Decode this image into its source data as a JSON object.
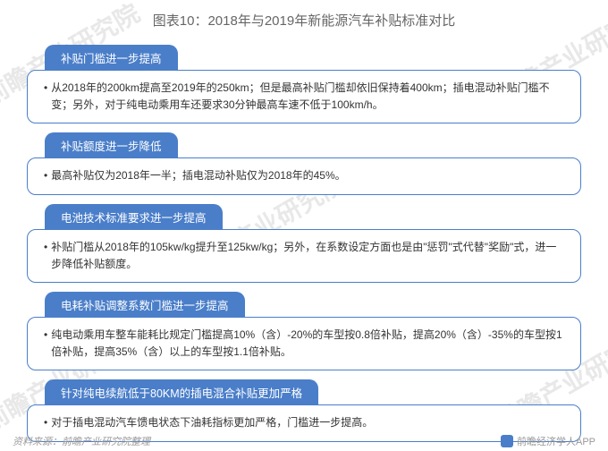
{
  "title": "图表10：2018年与2019年新能源汽车补贴标准对比",
  "watermark_text": "前瞻产业研究院",
  "sections": [
    {
      "header": "补贴门槛进一步提高",
      "body": "从2018年的200km提高至2019年的250km；但是最高补贴门槛却依旧保持着400km；插电混动补贴门槛不变；另外，对于纯电动乘用车还要求30分钟最高车速不低于100km/h。"
    },
    {
      "header": "补贴额度进一步降低",
      "body": "最高补贴仅为2018年一半；插电混动补贴仅为2018年的45%。"
    },
    {
      "header": "电池技术标准要求进一步提高",
      "body": "补贴门槛从2018年的105kw/kg提升至125kw/kg；另外，在系数设定方面也是由\"惩罚\"式代替\"奖励\"式，进一步降低补贴额度。"
    },
    {
      "header": "电耗补贴调整系数门槛进一步提高",
      "body": "纯电动乘用车整车能耗比规定门槛提高10%（含）-20%的车型按0.8倍补贴，提高20%（含）-35%的车型按1倍补贴，提高35%（含）以上的车型按1.1倍补贴。"
    },
    {
      "header": "针对纯电续航低于80KM的插电混合补贴更加严格",
      "body": "对于插电混动汽车馈电状态下油耗指标更加严格，门槛进一步提高。"
    }
  ],
  "footer_left": "资料来源：前瞻产业研究院整理",
  "footer_right": "前瞻经济学人APP",
  "colors": {
    "primary": "#4a7ec9",
    "title_text": "#666666",
    "body_text": "#333333",
    "footer_text": "#999999",
    "watermark": "#e8e8e8"
  }
}
